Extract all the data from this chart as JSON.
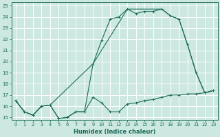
{
  "xlabel": "Humidex (Indice chaleur)",
  "xlim": [
    -0.5,
    23.5
  ],
  "ylim": [
    14.8,
    25.3
  ],
  "xticks": [
    0,
    1,
    2,
    3,
    4,
    5,
    6,
    7,
    8,
    9,
    10,
    11,
    12,
    13,
    14,
    15,
    16,
    17,
    18,
    19,
    20,
    21,
    22,
    23
  ],
  "yticks": [
    15,
    16,
    17,
    18,
    19,
    20,
    21,
    22,
    23,
    24,
    25
  ],
  "bg_color": "#cce8e0",
  "grid_color": "#b8d8d0",
  "line_color": "#1a6b5a",
  "line1_x": [
    0,
    1,
    2,
    3,
    4,
    5,
    6,
    7,
    8,
    9,
    10,
    11,
    12,
    13,
    14,
    15,
    16,
    17,
    18,
    19,
    20,
    21,
    22,
    23
  ],
  "line1_y": [
    16.5,
    15.5,
    15.2,
    16.0,
    16.1,
    14.9,
    15.0,
    15.5,
    15.5,
    16.8,
    16.3,
    15.5,
    15.5,
    16.2,
    16.3,
    16.5,
    16.6,
    16.8,
    17.0,
    17.0,
    17.1,
    17.1,
    17.2,
    17.4
  ],
  "line2_x": [
    0,
    1,
    2,
    3,
    4,
    5,
    6,
    7,
    8,
    9,
    10,
    11,
    12,
    13,
    14,
    15,
    16,
    17,
    18,
    19,
    20,
    21,
    22,
    23
  ],
  "line2_y": [
    16.5,
    15.5,
    15.2,
    16.0,
    16.1,
    14.9,
    15.0,
    15.5,
    15.5,
    19.8,
    21.9,
    23.8,
    24.0,
    24.7,
    24.3,
    24.5,
    24.5,
    24.7,
    24.1,
    23.8,
    21.5,
    19.0,
    17.2,
    17.4
  ],
  "line3_x": [
    0,
    1,
    2,
    3,
    4,
    9,
    13,
    17,
    18,
    19,
    20,
    21,
    22,
    23
  ],
  "line3_y": [
    16.5,
    15.5,
    15.2,
    16.0,
    16.1,
    19.8,
    24.7,
    24.7,
    24.1,
    23.8,
    21.5,
    19.0,
    17.2,
    17.4
  ]
}
